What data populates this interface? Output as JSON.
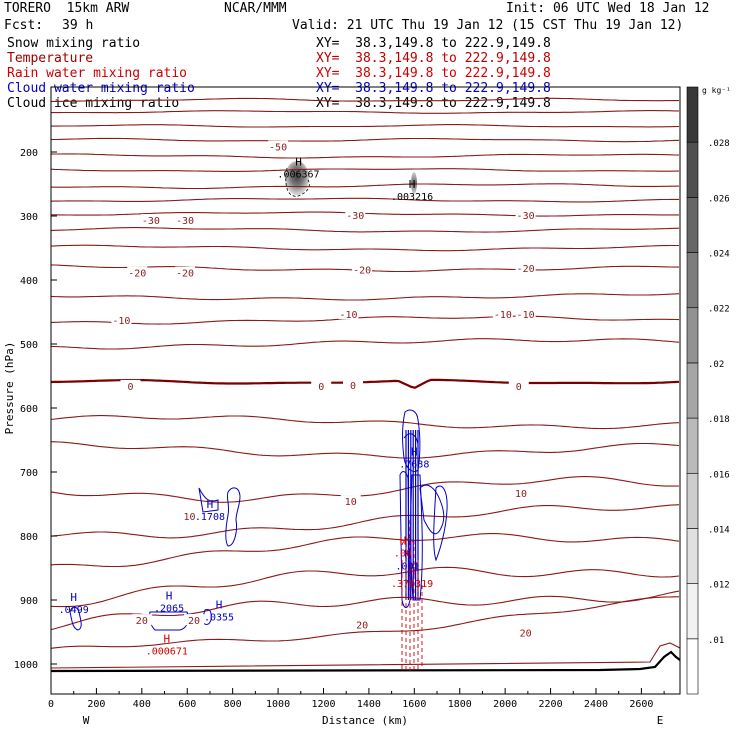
{
  "header": {
    "model": "TORERO  15km ARW",
    "org": "NCAR/MMM",
    "init": "Init: 06 UTC Wed 18 Jan 12",
    "fcst_label": "Fcst:",
    "fcst_value": "39 h",
    "valid": "Valid: 21 UTC Thu 19 Jan 12 (15 CST Thu 19 Jan 12)"
  },
  "fields": [
    {
      "name": "Snow mixing ratio",
      "xy": "XY=  38.3,149.8 to 222.9,149.8",
      "color": "#000000"
    },
    {
      "name": "Temperature",
      "xy": "XY=  38.3,149.8 to 222.9,149.8",
      "color": "#a00000"
    },
    {
      "name": "Rain water mixing ratio",
      "xy": "XY=  38.3,149.8 to 222.9,149.8",
      "color": "#d00000"
    },
    {
      "name": "Cloud water mixing ratio",
      "xy": "XY=  38.3,149.8 to 222.9,149.8",
      "color": "#0000c8"
    },
    {
      "name": "Cloud ice mixing ratio",
      "xy": "XY=  38.3,149.8 to 222.9,149.8",
      "color": "#000000"
    }
  ],
  "chart_data": {
    "type": "contour-cross-section",
    "xlabel": "Distance (km)",
    "ylabel": "Pressure (hPa)",
    "xlim": [
      0,
      2770
    ],
    "ylim": [
      150,
      1045
    ],
    "x_ticks": [
      0,
      200,
      400,
      600,
      800,
      1000,
      1200,
      1400,
      1600,
      1800,
      2000,
      2200,
      2400,
      2600
    ],
    "y_ticks": [
      200,
      300,
      400,
      500,
      600,
      700,
      800,
      900,
      1000
    ],
    "x_end_labels": {
      "left": "W",
      "right": "E"
    },
    "colorbar": {
      "unit": "g kg⁻¹",
      "ticks": [
        ".01",
        ".012",
        ".014",
        ".016",
        ".018",
        ".02",
        ".022",
        ".024",
        ".026",
        ".028"
      ],
      "colors": [
        "#ffffff",
        "#f2f2f2",
        "#e0e0e0",
        "#cdcdcd",
        "#bababa",
        "#a6a6a6",
        "#929292",
        "#7d7d7d",
        "#666666",
        "#505050",
        "#383838"
      ]
    },
    "temperature_contours": [
      {
        "label": "-50",
        "points": [
          [
            1000,
            193
          ]
        ]
      },
      {
        "label": "-30",
        "points": [
          [
            440,
            308
          ],
          [
            590,
            308
          ],
          [
            1340,
            300
          ],
          [
            2090,
            300
          ]
        ]
      },
      {
        "label": "-20",
        "points": [
          [
            380,
            390
          ],
          [
            590,
            390
          ],
          [
            1370,
            385
          ],
          [
            2090,
            383
          ]
        ]
      },
      {
        "label": "-10",
        "points": [
          [
            310,
            464
          ],
          [
            1310,
            455
          ],
          [
            1990,
            455
          ],
          [
            2090,
            455
          ]
        ]
      },
      {
        "label": "0",
        "points": [
          [
            350,
            567
          ],
          [
            1190,
            567
          ],
          [
            1330,
            566
          ],
          [
            2060,
            567
          ]
        ]
      },
      {
        "label": "10",
        "points": [
          [
            610,
            770
          ],
          [
            1320,
            747
          ],
          [
            2070,
            734
          ]
        ]
      },
      {
        "label": "20",
        "points": [
          [
            400,
            933
          ],
          [
            630,
            933
          ],
          [
            1370,
            940
          ],
          [
            2090,
            952
          ]
        ]
      }
    ],
    "extrema_labels": [
      {
        "field": "Snow mixing ratio",
        "type": "H",
        "value": ".006367",
        "x": 1090,
        "y": 240
      },
      {
        "field": "Snow mixing ratio",
        "type": "H",
        "value": ".003216",
        "x": 1590,
        "y": 275
      },
      {
        "field": "Cloud water mixing ratio",
        "type": "H",
        "value": ".7638",
        "x": 1600,
        "y": 693
      },
      {
        "field": "Cloud water mixing ratio",
        "type": "H",
        "value": ".1708",
        "x": 700,
        "y": 775
      },
      {
        "field": "Cloud water mixing ratio",
        "type": "H",
        "value": ".0499",
        "x": 100,
        "y": 920
      },
      {
        "field": "Cloud water mixing ratio",
        "type": "H",
        "value": ".2065",
        "x": 520,
        "y": 918
      },
      {
        "field": "Cloud water mixing ratio",
        "type": "H",
        "value": ".0355",
        "x": 740,
        "y": 932
      },
      {
        "field": "Cloud water mixing ratio",
        "type": "H",
        "value": ".001",
        "x": 1570,
        "y": 852
      },
      {
        "field": "Rain water mixing ratio",
        "type": "H",
        "value": ".000671",
        "x": 510,
        "y": 985
      },
      {
        "field": "Rain water mixing ratio",
        "type": "H",
        "value": ".00",
        "x": 1550,
        "y": 832
      },
      {
        "field": "Rain water mixing ratio",
        "type": "H",
        "value": ".370319",
        "x": 1590,
        "y": 880
      }
    ]
  }
}
